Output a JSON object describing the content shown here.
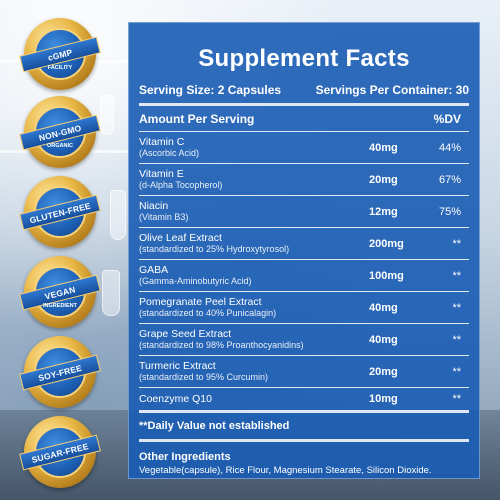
{
  "badges": [
    {
      "label": "cGMP",
      "sub": "FACILITY"
    },
    {
      "label": "NON-GMO",
      "sub": "ORGANIC"
    },
    {
      "label": "GLUTEN-FREE",
      "sub": ""
    },
    {
      "label": "VEGAN",
      "sub": "INGREDIENT"
    },
    {
      "label": "SOY-FREE",
      "sub": ""
    },
    {
      "label": "SUGAR-FREE",
      "sub": ""
    }
  ],
  "facts": {
    "title": "Supplement  Facts",
    "serving_size": "Serving Size: 2 Capsules",
    "servings_per_container": "Servings Per Container: 30",
    "amount_header": "Amount Per Serving",
    "dv_header": "%DV",
    "rows": [
      {
        "name": "Vitamin C",
        "sub": "(Ascorbic Acid)",
        "amount": "40mg",
        "dv": "44%"
      },
      {
        "name": "Vitamin E",
        "sub": "(d-Alpha Tocopherol)",
        "amount": "20mg",
        "dv": "67%"
      },
      {
        "name": "Niacin",
        "sub": "(Vitamin B3)",
        "amount": "12mg",
        "dv": "75%"
      },
      {
        "name": "Olive Leaf Extract",
        "sub": "(standardized to 25% Hydroxytyrosol)",
        "amount": "200mg",
        "dv": "**"
      },
      {
        "name": "GABA",
        "sub": "(Gamma-Aminobutyric Acid)",
        "amount": "100mg",
        "dv": "**"
      },
      {
        "name": "Pomegranate Peel Extract",
        "sub": "(standardized to 40% Punicalagin)",
        "amount": "40mg",
        "dv": "**"
      },
      {
        "name": "Grape Seed Extract",
        "sub": "(standardized to 98% Proanthocyanidins)",
        "amount": "40mg",
        "dv": "**"
      },
      {
        "name": "Turmeric Extract",
        "sub": "(standardized to 95% Curcumin)",
        "amount": "20mg",
        "dv": "**"
      },
      {
        "name": "Coenzyme Q10",
        "sub": "",
        "amount": "10mg",
        "dv": "**"
      }
    ],
    "note": "**Daily Value not established",
    "other_title": "Other Ingredients",
    "other_text": "Vegetable(capsule), Rice Flour, Magnesium Stearate, Silicon Dioxide."
  },
  "colors": {
    "panel": "#1a5cb4",
    "badge_gold": "#e7b545",
    "badge_blue": "#1d5fb4"
  }
}
